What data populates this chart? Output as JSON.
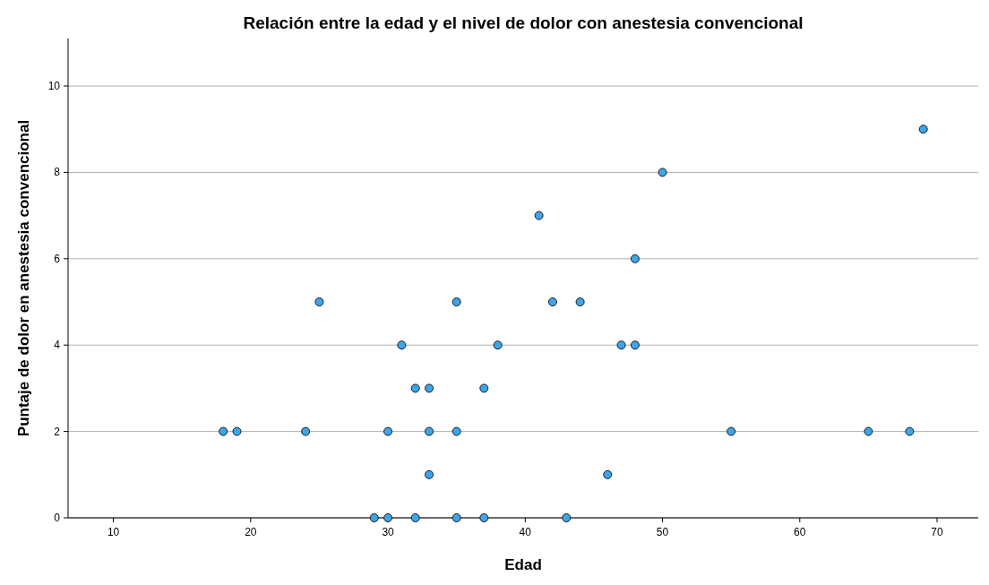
{
  "chart_data": {
    "type": "scatter",
    "title": "Relación entre la edad y el nivel de dolor con anestesia convencional",
    "xlabel": "Edad",
    "ylabel": "Puntaje de dolor en anestesia convencional",
    "xlim": [
      6.7,
      73
    ],
    "xticks": [
      10,
      20,
      30,
      40,
      50,
      60,
      70
    ],
    "ylim": [
      0,
      11.1
    ],
    "yticks": [
      0,
      2,
      4,
      6,
      8,
      10
    ],
    "grid": "y",
    "marker": "circle",
    "series": [
      {
        "color": "#3ca6ec",
        "x": [
          18,
          19,
          24,
          25,
          29,
          30,
          30,
          31,
          32,
          32,
          33,
          33,
          33,
          35,
          35,
          35,
          37,
          37,
          38,
          41,
          42,
          43,
          44,
          46,
          47,
          48,
          48,
          50,
          55,
          65,
          68,
          69
        ],
        "values": [
          2,
          2,
          2,
          5,
          0,
          0,
          2,
          4,
          3,
          0,
          3,
          2,
          1,
          5,
          2,
          0,
          3,
          0,
          4,
          7,
          5,
          0,
          5,
          1,
          4,
          4,
          6,
          8,
          2,
          2,
          2,
          9
        ]
      }
    ]
  }
}
